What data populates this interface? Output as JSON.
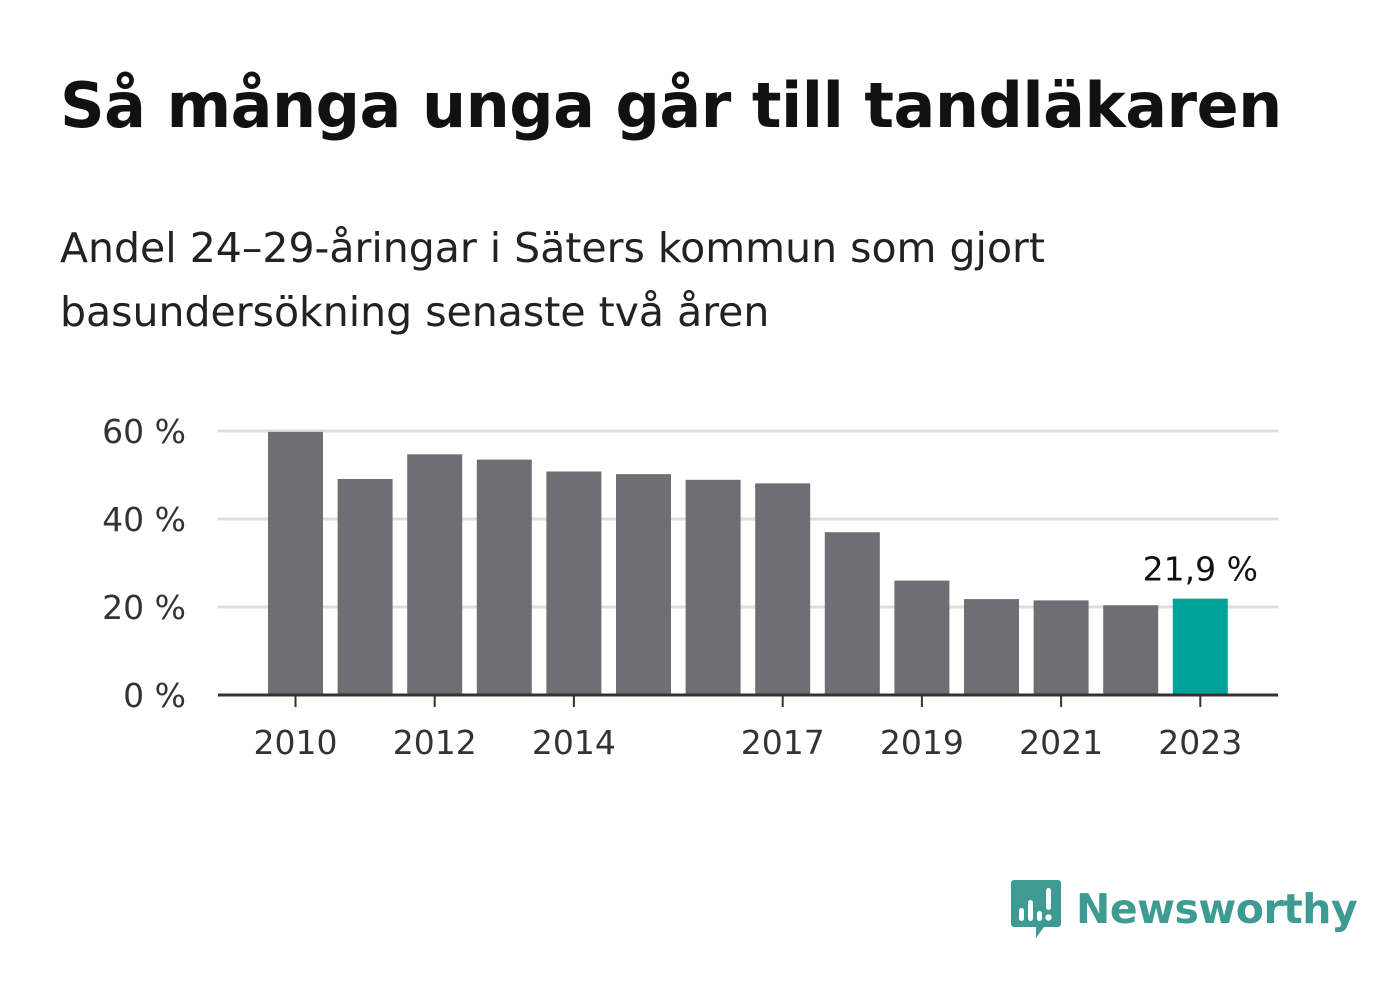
{
  "chart_data": {
    "type": "bar",
    "title": "Så många unga går till tandläkaren",
    "subtitle": "Andel 24–29-åringar i Säters kommun som gjort basundersökning senaste två åren",
    "categories": [
      "2010",
      "2011",
      "2012",
      "2013",
      "2014",
      "2015",
      "2016",
      "2017",
      "2018",
      "2019",
      "2020",
      "2021",
      "2022",
      "2023"
    ],
    "x_tick_labels": [
      "2010",
      "",
      "2012",
      "",
      "2014",
      "",
      "",
      "2017",
      "",
      "2019",
      "",
      "2021",
      "",
      "2023"
    ],
    "values": [
      59.8,
      49.1,
      54.7,
      53.5,
      50.8,
      50.2,
      48.9,
      48.1,
      37.0,
      26.0,
      21.8,
      21.5,
      20.4,
      21.9
    ],
    "y_ticks": [
      0,
      20,
      40,
      60
    ],
    "y_tick_labels": [
      "0 %",
      "20 %",
      "40 %",
      "60 %"
    ],
    "ylim": [
      0,
      60
    ],
    "grid": true,
    "highlight_index": 13,
    "highlight_label": "21,9 %",
    "colors": {
      "bar": "#6f6e74",
      "highlight": "#00a39a",
      "grid": "#dddddd",
      "axis": "#333333"
    }
  },
  "logo": {
    "text": "Newsworthy",
    "color": "#3e9b93",
    "icon": "bar-chart-speech-bubble-icon"
  }
}
